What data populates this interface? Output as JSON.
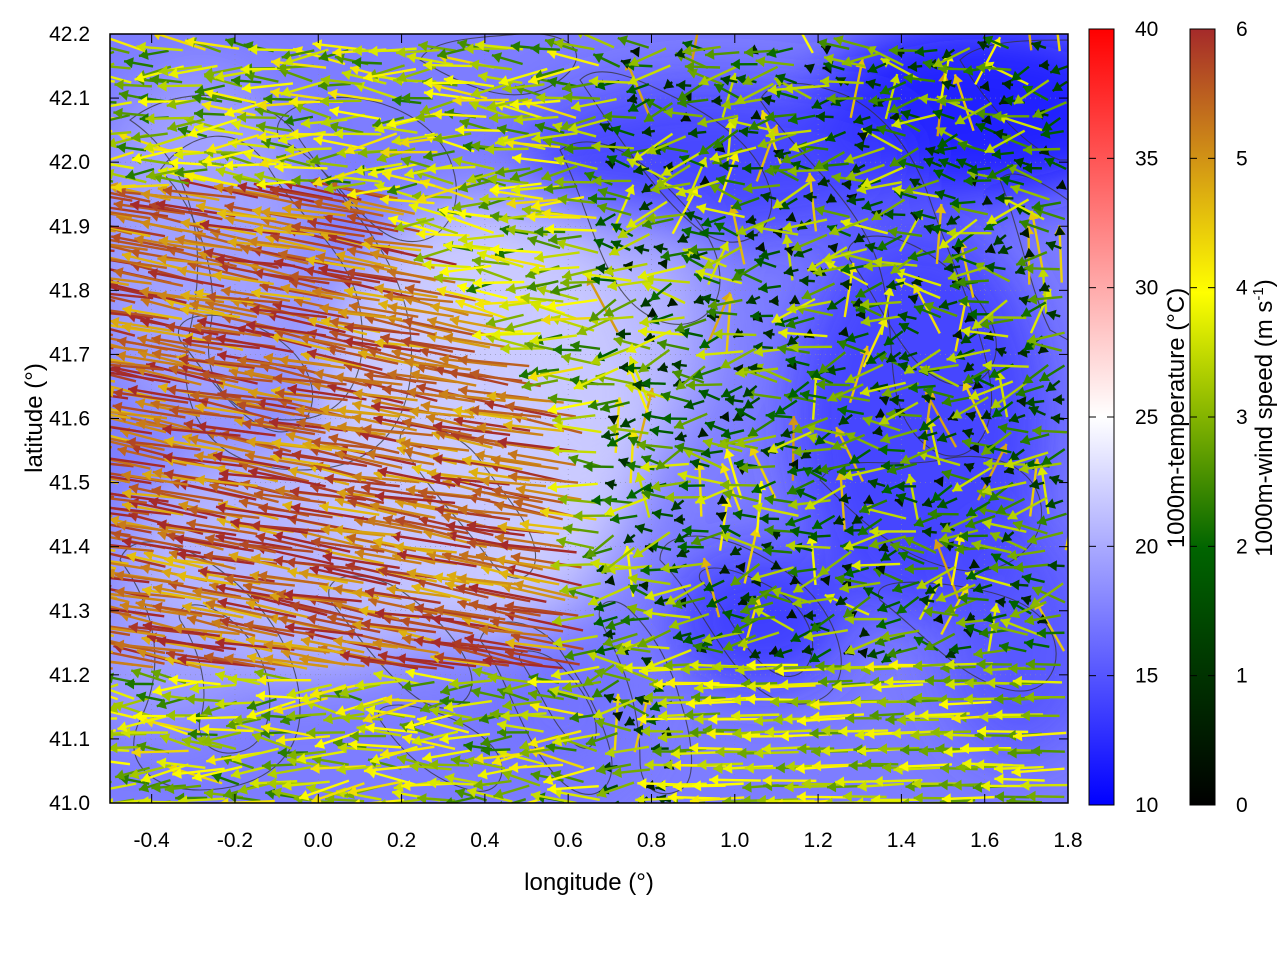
{
  "chart_data": {
    "type": "heatmap",
    "title": "",
    "xlabel": "longitude (°)",
    "ylabel": "latitude (°)",
    "xlim": [
      -0.5,
      1.8
    ],
    "ylim": [
      41.0,
      42.2
    ],
    "x_ticks": [
      "-0.4",
      "-0.2",
      "0.0",
      "0.2",
      "0.4",
      "0.6",
      "0.8",
      "1.0",
      "1.2",
      "1.4",
      "1.6",
      "1.8"
    ],
    "y_ticks": [
      "41.0",
      "41.1",
      "41.2",
      "41.3",
      "41.4",
      "41.5",
      "41.6",
      "41.7",
      "41.8",
      "41.9",
      "42.0",
      "42.1",
      "42.2"
    ],
    "grid": true,
    "temperature_colorbar": {
      "label": "1000m-temperature (°C)",
      "range": [
        10,
        40
      ],
      "ticks": [
        "10",
        "15",
        "20",
        "25",
        "30",
        "35",
        "40"
      ],
      "colors": [
        "#0000ff",
        "#ffffff",
        "#ff0000"
      ]
    },
    "wind_colorbar": {
      "label_main": "1000m-wind speed (m s",
      "label_sup": "-1",
      "label_end": ")",
      "range": [
        0,
        6
      ],
      "ticks": [
        "0",
        "1",
        "2",
        "3",
        "4",
        "5",
        "6"
      ],
      "colors": [
        "#000000",
        "#006400",
        "#ffff00",
        "#a52a2a"
      ]
    },
    "temperature_field_approx": "mostly 13-20 °C; warmest (~20 °C) in west-central region near lon 0.0-0.6, coolest (~11-12 °C) in the north-east near lon 1.3-1.8, lat 41.9-42.2",
    "wind_regimes": [
      {
        "region": "west / south-west (lon -0.5 to 0.6, lat 41.2 to 41.9)",
        "direction": "from east-south-east toward west-north-west",
        "speed_ms": [
          5,
          6
        ]
      },
      {
        "region": "central and north (lon 0.4 to 1.6, lat 41.6 to 42.2)",
        "direction": "westward",
        "speed_ms": [
          1,
          3
        ]
      },
      {
        "region": "south-east (lon 0.9 to 1.8, lat 41.0 to 41.2)",
        "direction": "westward",
        "speed_ms": [
          3,
          4
        ]
      }
    ]
  }
}
